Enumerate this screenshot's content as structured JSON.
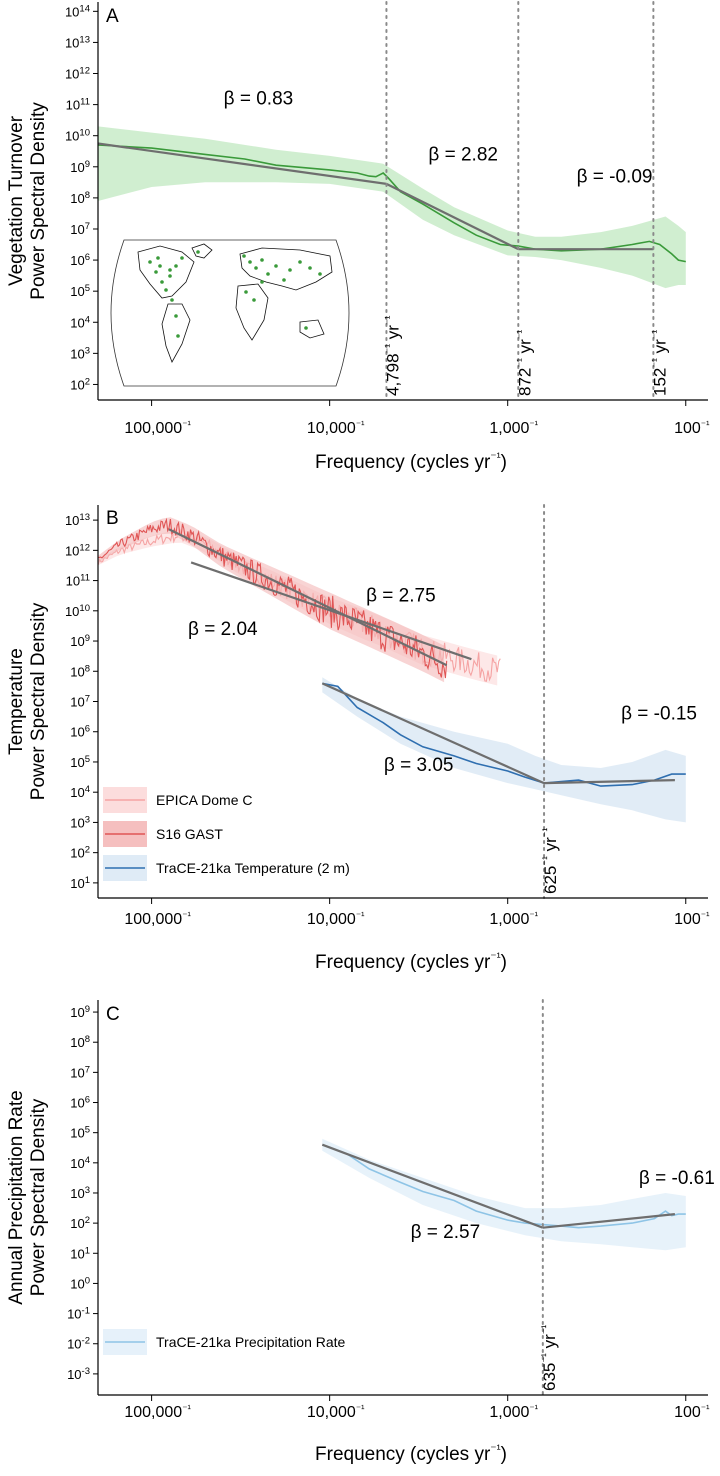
{
  "chart_data": [
    {
      "panel": "A",
      "type": "line",
      "xlabel": "Frequency (cycles yr⁻¹)",
      "ylabel": [
        "Vegetation Turnover",
        "Power Spectral Density"
      ],
      "x_scale": "log_reciprocal_years",
      "y_scale": "log10",
      "xlim_period_years": [
        200000,
        75
      ],
      "ylim_log10": [
        1.5,
        14.3
      ],
      "y_ticks_exp": [
        2,
        3,
        4,
        5,
        6,
        7,
        8,
        9,
        10,
        11,
        12,
        13,
        14
      ],
      "x_ticks": [
        {
          "period": 100000,
          "label": "100,000"
        },
        {
          "period": 10000,
          "label": "10,000"
        },
        {
          "period": 1000,
          "label": "1,000"
        },
        {
          "period": 100,
          "label": "100"
        }
      ],
      "cutoffs": [
        {
          "period": 4798,
          "label": "4,798"
        },
        {
          "period": 872,
          "label": "872"
        },
        {
          "period": 152,
          "label": "152"
        }
      ],
      "fits": [
        {
          "beta_label": "β = 0.83",
          "points": [
            [
              200000,
              9.75
            ],
            [
              4798,
              8.45
            ]
          ]
        },
        {
          "beta_label": "β = 2.82",
          "points": [
            [
              4798,
              8.45
            ],
            [
              872,
              6.35
            ]
          ]
        },
        {
          "beta_label": "β = -0.09",
          "points": [
            [
              872,
              6.35
            ],
            [
              152,
              6.35
            ]
          ]
        }
      ],
      "beta_positions": [
        [
          4.4,
          11.0
        ],
        [
          3.25,
          9.2
        ],
        [
          2.4,
          8.5
        ]
      ],
      "series": [
        {
          "color": "#3a9a3a",
          "band_color": "#c8ebc8",
          "line": [
            [
              200000,
              9.7
            ],
            [
              100000,
              9.6
            ],
            [
              50000,
              9.4
            ],
            [
              30000,
              9.25
            ],
            [
              20000,
              9.05
            ],
            [
              10000,
              8.9
            ],
            [
              7000,
              8.8
            ],
            [
              6000,
              8.7
            ],
            [
              5500,
              8.68
            ],
            [
              5000,
              8.8
            ],
            [
              4700,
              8.65
            ],
            [
              4000,
              8.2
            ],
            [
              3000,
              7.8
            ],
            [
              2000,
              7.2
            ],
            [
              1500,
              6.8
            ],
            [
              1100,
              6.5
            ],
            [
              872,
              6.45
            ],
            [
              700,
              6.35
            ],
            [
              500,
              6.3
            ],
            [
              300,
              6.35
            ],
            [
              200,
              6.5
            ],
            [
              160,
              6.6
            ],
            [
              140,
              6.5
            ],
            [
              120,
              6.2
            ],
            [
              110,
              6.0
            ],
            [
              100,
              5.95
            ]
          ],
          "band_upper": [
            [
              200000,
              10.3
            ],
            [
              100000,
              10.1
            ],
            [
              50000,
              9.9
            ],
            [
              20000,
              9.55
            ],
            [
              10000,
              9.35
            ],
            [
              5000,
              9.1
            ],
            [
              3000,
              8.3
            ],
            [
              2000,
              7.7
            ],
            [
              1000,
              6.95
            ],
            [
              700,
              6.75
            ],
            [
              500,
              6.75
            ],
            [
              300,
              6.9
            ],
            [
              200,
              7.1
            ],
            [
              130,
              7.4
            ],
            [
              110,
              7.1
            ],
            [
              100,
              6.9
            ]
          ],
          "band_lower": [
            [
              200000,
              7.9
            ],
            [
              100000,
              8.35
            ],
            [
              50000,
              8.5
            ],
            [
              20000,
              8.5
            ],
            [
              10000,
              8.45
            ],
            [
              5000,
              8.2
            ],
            [
              3000,
              7.3
            ],
            [
              2000,
              6.8
            ],
            [
              1000,
              6.15
            ],
            [
              700,
              6.1
            ],
            [
              500,
              6.0
            ],
            [
              300,
              5.75
            ],
            [
              200,
              5.5
            ],
            [
              130,
              5.1
            ],
            [
              110,
              5.2
            ],
            [
              100,
              5.2
            ]
          ]
        }
      ],
      "has_map_inset": true
    },
    {
      "panel": "B",
      "type": "line",
      "xlabel": "Frequency (cycles yr⁻¹)",
      "ylabel": [
        "Temperature",
        "Power Spectral Density"
      ],
      "x_scale": "log_reciprocal_years",
      "y_scale": "log10",
      "xlim_period_years": [
        200000,
        75
      ],
      "ylim_log10": [
        0.5,
        13.5
      ],
      "y_ticks_exp": [
        1,
        2,
        3,
        4,
        5,
        6,
        7,
        8,
        9,
        10,
        11,
        12,
        13
      ],
      "x_ticks": [
        {
          "period": 100000,
          "label": "100,000"
        },
        {
          "period": 10000,
          "label": "10,000"
        },
        {
          "period": 1000,
          "label": "1,000"
        },
        {
          "period": 100,
          "label": "100"
        }
      ],
      "cutoffs": [
        {
          "period": 625,
          "label": "625"
        }
      ],
      "fits": [
        {
          "beta_label": "β = 2.75",
          "points": [
            [
              80000,
              12.7
            ],
            [
              2200,
              8.2
            ]
          ]
        },
        {
          "beta_label": "β = 2.04",
          "points": [
            [
              60000,
              11.6
            ],
            [
              1600,
              8.4
            ]
          ]
        },
        {
          "beta_label": "β = 3.05",
          "points": [
            [
              11000,
              7.6
            ],
            [
              625,
              4.3
            ]
          ]
        },
        {
          "beta_label": "β = -0.15",
          "points": [
            [
              625,
              4.3
            ],
            [
              115,
              4.4
            ]
          ]
        }
      ],
      "beta_positions": [
        [
          3.6,
          10.3
        ],
        [
          4.6,
          9.2
        ],
        [
          3.5,
          4.7
        ],
        [
          2.15,
          6.4
        ]
      ],
      "legend": [
        "EPICA Dome C",
        "S16 GAST",
        "TraCE-21ka Temperature (2 m)"
      ],
      "series": [
        {
          "name": "EPICA Dome C",
          "color": "#f5a3a3",
          "band_color": "#fcd9d9",
          "trend": [
            [
              200000,
              11.6
            ],
            [
              150000,
              12.0
            ],
            [
              100000,
              12.3
            ],
            [
              70000,
              12.5
            ],
            [
              50000,
              12.2
            ],
            [
              30000,
              11.4
            ],
            [
              20000,
              10.9
            ],
            [
              10000,
              10.0
            ],
            [
              5000,
              9.3
            ],
            [
              3000,
              8.7
            ],
            [
              1500,
              8.2
            ],
            [
              1100,
              8.0
            ]
          ],
          "noise": 0.45
        },
        {
          "name": "S16 GAST",
          "color": "#e05555",
          "band_color": "#f4b8b8",
          "trend": [
            [
              200000,
              11.7
            ],
            [
              150000,
              12.2
            ],
            [
              100000,
              12.7
            ],
            [
              80000,
              12.85
            ],
            [
              60000,
              12.5
            ],
            [
              40000,
              11.8
            ],
            [
              20000,
              10.9
            ],
            [
              10000,
              10.0
            ],
            [
              5000,
              9.2
            ],
            [
              3000,
              8.6
            ],
            [
              2200,
              8.2
            ]
          ],
          "noise": 0.55
        },
        {
          "name": "TraCE-21ka Temperature (2 m)",
          "color": "#2f6fb0",
          "band_color": "#dce9f5",
          "line": [
            [
              11000,
              7.6
            ],
            [
              9000,
              7.5
            ],
            [
              7000,
              6.8
            ],
            [
              5000,
              6.3
            ],
            [
              4000,
              5.9
            ],
            [
              3000,
              5.5
            ],
            [
              2000,
              5.2
            ],
            [
              1500,
              4.95
            ],
            [
              1000,
              4.7
            ],
            [
              800,
              4.5
            ],
            [
              625,
              4.3
            ],
            [
              500,
              4.35
            ],
            [
              400,
              4.4
            ],
            [
              300,
              4.2
            ],
            [
              200,
              4.25
            ],
            [
              150,
              4.4
            ],
            [
              120,
              4.6
            ],
            [
              100,
              4.6
            ]
          ],
          "band_upper": [
            [
              11000,
              7.8
            ],
            [
              7000,
              7.1
            ],
            [
              4000,
              6.5
            ],
            [
              2000,
              6.0
            ],
            [
              1000,
              5.6
            ],
            [
              700,
              5.2
            ],
            [
              500,
              4.9
            ],
            [
              300,
              4.8
            ],
            [
              200,
              5.0
            ],
            [
              130,
              5.4
            ],
            [
              100,
              5.2
            ]
          ],
          "band_lower": [
            [
              11000,
              7.3
            ],
            [
              7000,
              6.5
            ],
            [
              4000,
              5.6
            ],
            [
              2000,
              4.8
            ],
            [
              1000,
              4.3
            ],
            [
              700,
              4.1
            ],
            [
              500,
              3.9
            ],
            [
              300,
              3.6
            ],
            [
              200,
              3.4
            ],
            [
              130,
              3.1
            ],
            [
              100,
              3.0
            ]
          ]
        }
      ]
    },
    {
      "panel": "C",
      "type": "line",
      "xlabel": "Frequency (cycles yr⁻¹)",
      "ylabel": [
        "Annual Precipitation Rate",
        "Power Spectral Density"
      ],
      "x_scale": "log_reciprocal_years",
      "y_scale": "log10",
      "xlim_period_years": [
        200000,
        75
      ],
      "ylim_log10": [
        -3.7,
        9.4
      ],
      "y_ticks_exp": [
        -3,
        -2,
        -1,
        0,
        1,
        2,
        3,
        4,
        5,
        6,
        7,
        8,
        9
      ],
      "x_ticks": [
        {
          "period": 100000,
          "label": "100,000"
        },
        {
          "period": 10000,
          "label": "10,000"
        },
        {
          "period": 1000,
          "label": "1,000"
        },
        {
          "period": 100,
          "label": "100"
        }
      ],
      "cutoffs": [
        {
          "period": 635,
          "label": "635"
        }
      ],
      "fits": [
        {
          "beta_label": "β = 2.57",
          "points": [
            [
              11000,
              4.6
            ],
            [
              635,
              1.85
            ]
          ]
        },
        {
          "beta_label": "β = -0.61",
          "points": [
            [
              635,
              1.85
            ],
            [
              115,
              2.3
            ]
          ]
        }
      ],
      "beta_positions": [
        [
          3.35,
          1.5
        ],
        [
          2.05,
          3.3
        ]
      ],
      "legend": [
        "TraCE-21ka Precipitation Rate"
      ],
      "series": [
        {
          "name": "TraCE-21ka Precipitation Rate",
          "color": "#8ec4e6",
          "band_color": "#e3f0f9",
          "line": [
            [
              11000,
              4.6
            ],
            [
              8000,
              4.3
            ],
            [
              6000,
              3.8
            ],
            [
              4000,
              3.35
            ],
            [
              3000,
              3.05
            ],
            [
              2000,
              2.75
            ],
            [
              1500,
              2.4
            ],
            [
              1000,
              2.1
            ],
            [
              800,
              2.0
            ],
            [
              635,
              1.95
            ],
            [
              500,
              1.9
            ],
            [
              400,
              1.85
            ],
            [
              300,
              1.9
            ],
            [
              200,
              2.0
            ],
            [
              150,
              2.15
            ],
            [
              130,
              2.4
            ],
            [
              120,
              2.25
            ],
            [
              110,
              2.3
            ],
            [
              100,
              2.3
            ]
          ],
          "band_upper": [
            [
              11000,
              4.8
            ],
            [
              6000,
              4.1
            ],
            [
              3000,
              3.5
            ],
            [
              1500,
              2.9
            ],
            [
              800,
              2.5
            ],
            [
              500,
              2.5
            ],
            [
              300,
              2.6
            ],
            [
              200,
              2.8
            ],
            [
              130,
              3.0
            ],
            [
              100,
              2.9
            ]
          ],
          "band_lower": [
            [
              11000,
              4.4
            ],
            [
              6000,
              3.5
            ],
            [
              3000,
              2.6
            ],
            [
              1500,
              2.0
            ],
            [
              800,
              1.6
            ],
            [
              500,
              1.4
            ],
            [
              300,
              1.3
            ],
            [
              200,
              1.2
            ],
            [
              130,
              1.1
            ],
            [
              100,
              1.2
            ]
          ]
        }
      ]
    }
  ],
  "labels": {
    "panel_letters": [
      "A",
      "B",
      "C"
    ],
    "reciprocal_suffix": "⁻¹",
    "cutoff_unit": "yr⁻¹"
  }
}
